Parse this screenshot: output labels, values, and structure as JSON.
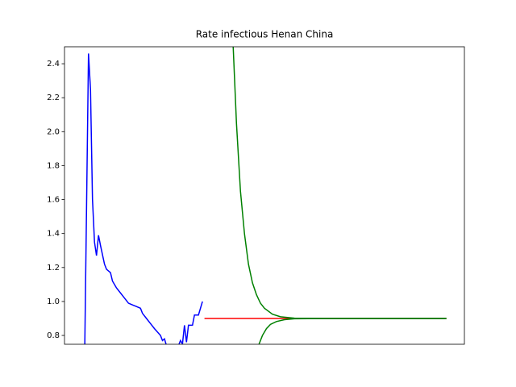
{
  "chart_data": {
    "type": "line",
    "title": "Rate infectious Henan China",
    "xlim": [
      0,
      200
    ],
    "ylim": [
      0.748,
      2.5
    ],
    "yticks": [
      0.8,
      {
        "value": 1,
        "label": "1.0"
      },
      1.2,
      1.4,
      1.6,
      1.8,
      {
        "value": 2,
        "label": "2.0"
      },
      2.2,
      2.4
    ],
    "series": [
      {
        "color": "#0000ff",
        "x": [
          10,
          12,
          13,
          14,
          15,
          16,
          17,
          18,
          20,
          21,
          23,
          24,
          26,
          28,
          30,
          32,
          34,
          36,
          38,
          39,
          41,
          43,
          45,
          48,
          49,
          50,
          51,
          57,
          58,
          59,
          60,
          61,
          62,
          64,
          65,
          67,
          69
        ],
        "values": [
          0.6,
          2.46,
          2.25,
          1.6,
          1.35,
          1.27,
          1.39,
          1.33,
          1.22,
          1.19,
          1.17,
          1.12,
          1.08,
          1.05,
          1.02,
          0.99,
          0.98,
          0.97,
          0.96,
          0.93,
          0.9,
          0.87,
          0.84,
          0.8,
          0.77,
          0.78,
          0.74,
          0.74,
          0.77,
          0.75,
          0.86,
          0.76,
          0.86,
          0.86,
          0.92,
          0.92,
          1.0
        ]
      },
      {
        "color": "#ff0000",
        "x": [
          70,
          191
        ],
        "values": [
          0.9,
          0.9
        ]
      },
      {
        "color": "#008000",
        "x": [
          84,
          86,
          88,
          90,
          92,
          94,
          96,
          98,
          100,
          104,
          108,
          115,
          130,
          191
        ],
        "values": [
          2.6,
          2.05,
          1.65,
          1.4,
          1.22,
          1.11,
          1.04,
          0.99,
          0.96,
          0.925,
          0.91,
          0.902,
          0.9,
          0.9
        ]
      },
      {
        "color": "#008000",
        "x": [
          97,
          99,
          101,
          103,
          106,
          110,
          115,
          130,
          191
        ],
        "values": [
          0.74,
          0.8,
          0.84,
          0.865,
          0.882,
          0.893,
          0.898,
          0.9,
          0.9
        ]
      }
    ]
  }
}
